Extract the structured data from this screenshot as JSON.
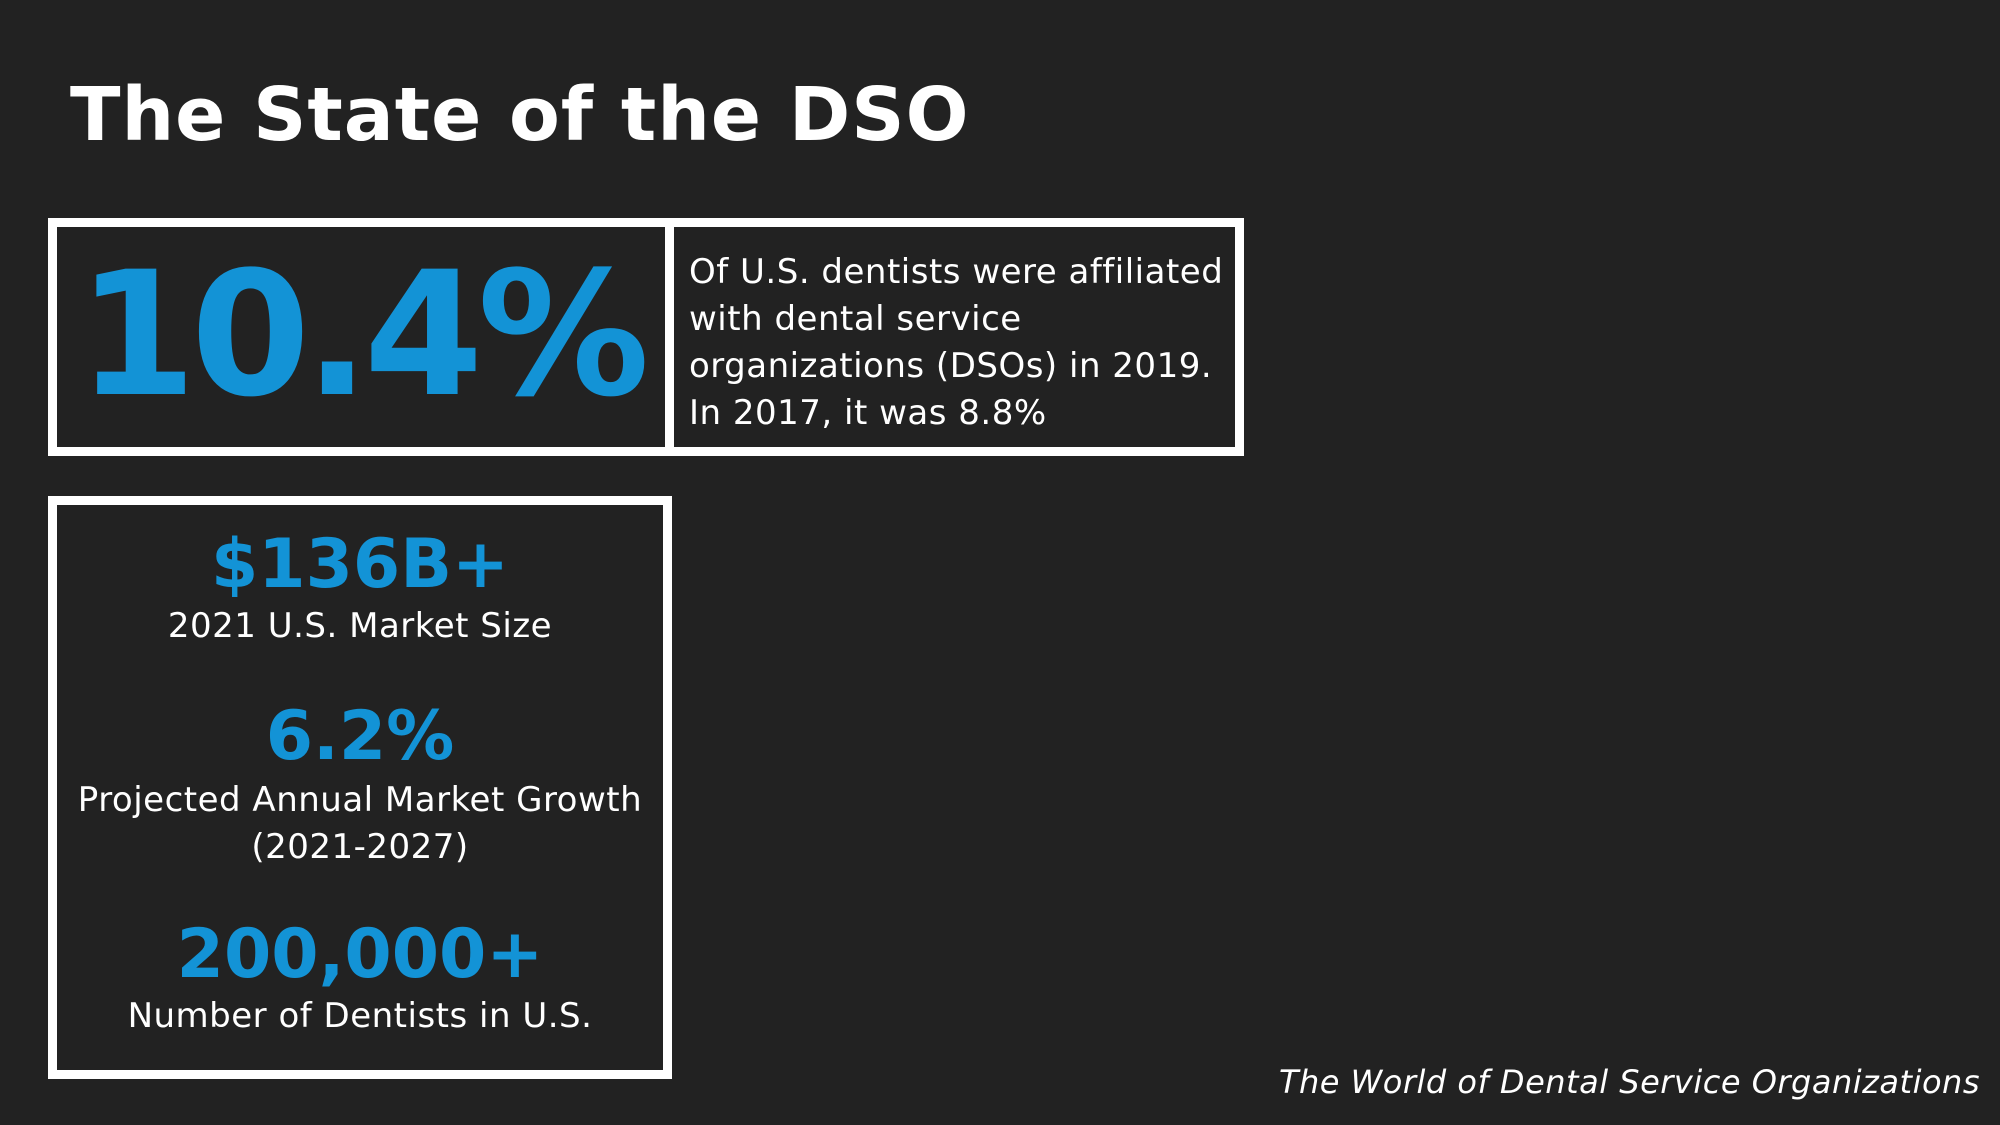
{
  "title": "The State of the DSO",
  "highlight": {
    "value": "10.4%",
    "description": "Of U.S. dentists were affiliated with dental service organizations (DSOs) in 2019. In 2017, it was 8.8%"
  },
  "stats": [
    {
      "value": "$136B+",
      "label": "2021 U.S. Market Size"
    },
    {
      "value": "6.2%",
      "label": "Projected Annual Market Growth (2021-2027)"
    },
    {
      "value": "200,000+",
      "label": "Number of Dentists in U.S."
    }
  ],
  "footer": "The World of Dental Service Organizations",
  "colors": {
    "background": "#222222",
    "accent": "#1393d6",
    "text": "#ffffff"
  }
}
